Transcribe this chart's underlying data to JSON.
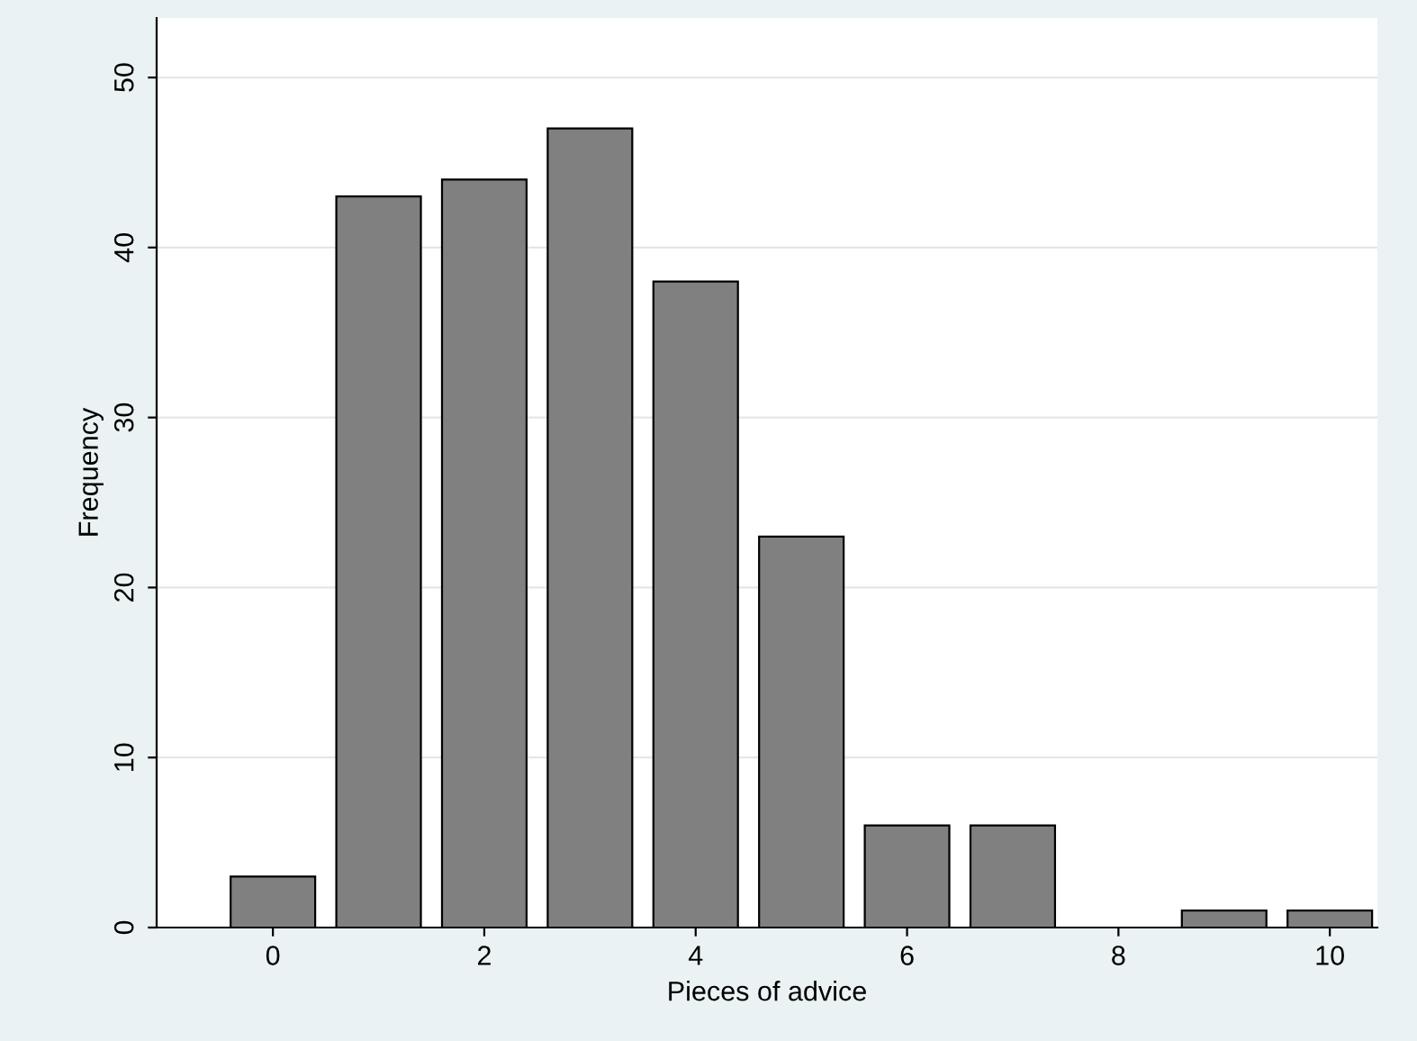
{
  "chart_data": {
    "type": "bar",
    "xlabel": "Pieces of advice",
    "ylabel": "Frequency",
    "x": [
      0,
      1,
      2,
      3,
      4,
      5,
      6,
      7,
      8,
      9,
      10
    ],
    "values": [
      3,
      43,
      44,
      47,
      38,
      23,
      6,
      6,
      null,
      1,
      1
    ],
    "color": "#808080",
    "xlim": [
      -1.1,
      10.45
    ],
    "xticks": [
      0,
      2,
      4,
      6,
      8,
      10
    ],
    "ylim": [
      0,
      53.5
    ],
    "yticks": [
      0,
      10,
      20,
      30,
      40,
      50
    ],
    "grid": "y",
    "legend": false
  }
}
